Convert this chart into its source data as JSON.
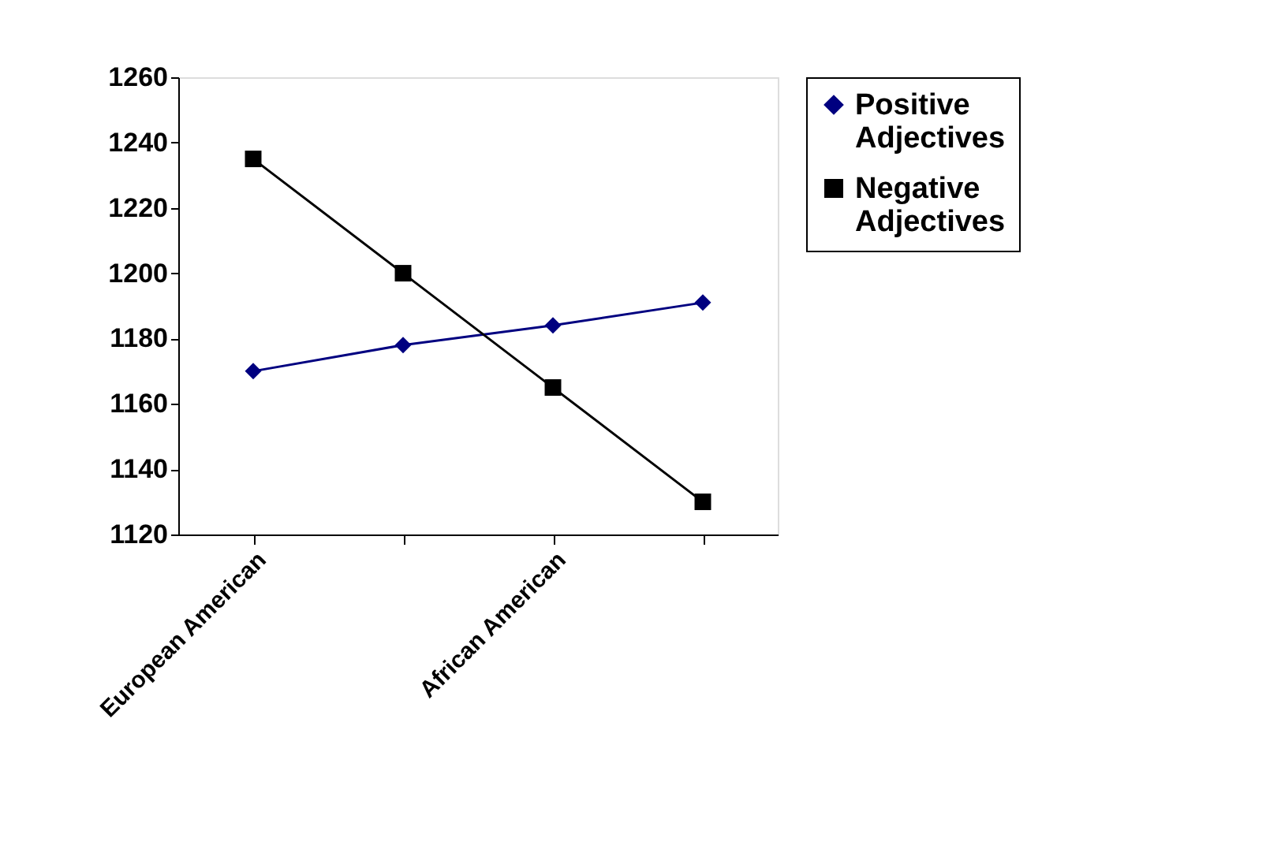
{
  "chart_data": {
    "type": "line",
    "categories": [
      "European American",
      null,
      "African American",
      null
    ],
    "series": [
      {
        "name": "Positive Adjectives",
        "color": "#000080",
        "marker": "diamond",
        "values": [
          1170,
          1178,
          1184,
          1191
        ]
      },
      {
        "name": "Negative Adjectives",
        "color": "#000000",
        "marker": "square",
        "values": [
          1235,
          1200,
          1165,
          1130
        ]
      }
    ],
    "ylim": [
      1120,
      1260
    ],
    "yticks": [
      1120,
      1140,
      1160,
      1180,
      1200,
      1220,
      1240,
      1260
    ],
    "grid": false,
    "legend": "right",
    "line_style": "solid"
  }
}
